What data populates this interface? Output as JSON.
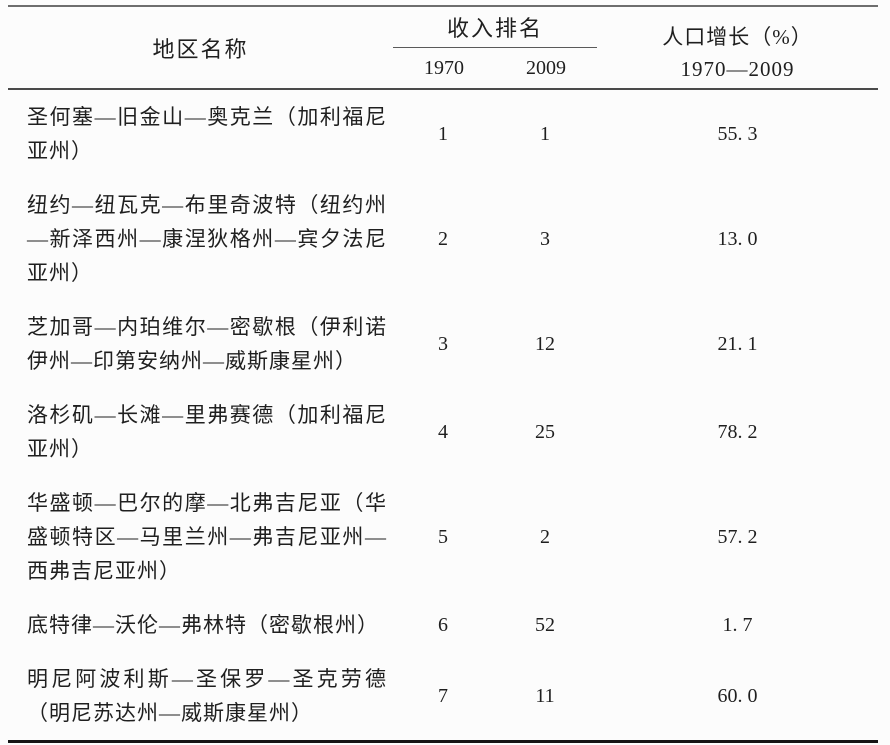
{
  "document": {
    "background_color": "#fcfcfc",
    "text_color": "#1f1f1f",
    "rule_colors": {
      "top": "#6e6e6e",
      "middle": "#4a4a4a",
      "bottom": "#161616"
    }
  },
  "table": {
    "header": {
      "region_label": "地区名称",
      "income_rank_label": "收入排名",
      "col_1970": "1970",
      "col_2009": "2009",
      "growth_label_line1": "人口增长（%）",
      "growth_label_line2": "1970—2009"
    },
    "rows": [
      {
        "region": "圣何塞—旧金山—奥克兰（加利福尼亚州）",
        "rank_1970": "1",
        "rank_2009": "1",
        "growth": "55. 3"
      },
      {
        "region": "纽约—纽瓦克—布里奇波特（纽约州—新泽西州—康涅狄格州—宾夕法尼亚州）",
        "rank_1970": "2",
        "rank_2009": "3",
        "growth": "13. 0"
      },
      {
        "region": "芝加哥—内珀维尔—密歇根（伊利诺伊州—印第安纳州—威斯康星州）",
        "rank_1970": "3",
        "rank_2009": "12",
        "growth": "21. 1"
      },
      {
        "region": "洛杉矶—长滩—里弗赛德（加利福尼亚州）",
        "rank_1970": "4",
        "rank_2009": "25",
        "growth": "78. 2"
      },
      {
        "region": "华盛顿—巴尔的摩—北弗吉尼亚（华盛顿特区—马里兰州—弗吉尼亚州—西弗吉尼亚州）",
        "rank_1970": "5",
        "rank_2009": "2",
        "growth": "57. 2"
      },
      {
        "region": "底特律—沃伦—弗林特（密歇根州）",
        "rank_1970": "6",
        "rank_2009": "52",
        "growth": "1. 7"
      },
      {
        "region": "明尼阿波利斯—圣保罗—圣克劳德（明尼苏达州—威斯康星州）",
        "rank_1970": "7",
        "rank_2009": "11",
        "growth": "60. 0"
      }
    ]
  }
}
